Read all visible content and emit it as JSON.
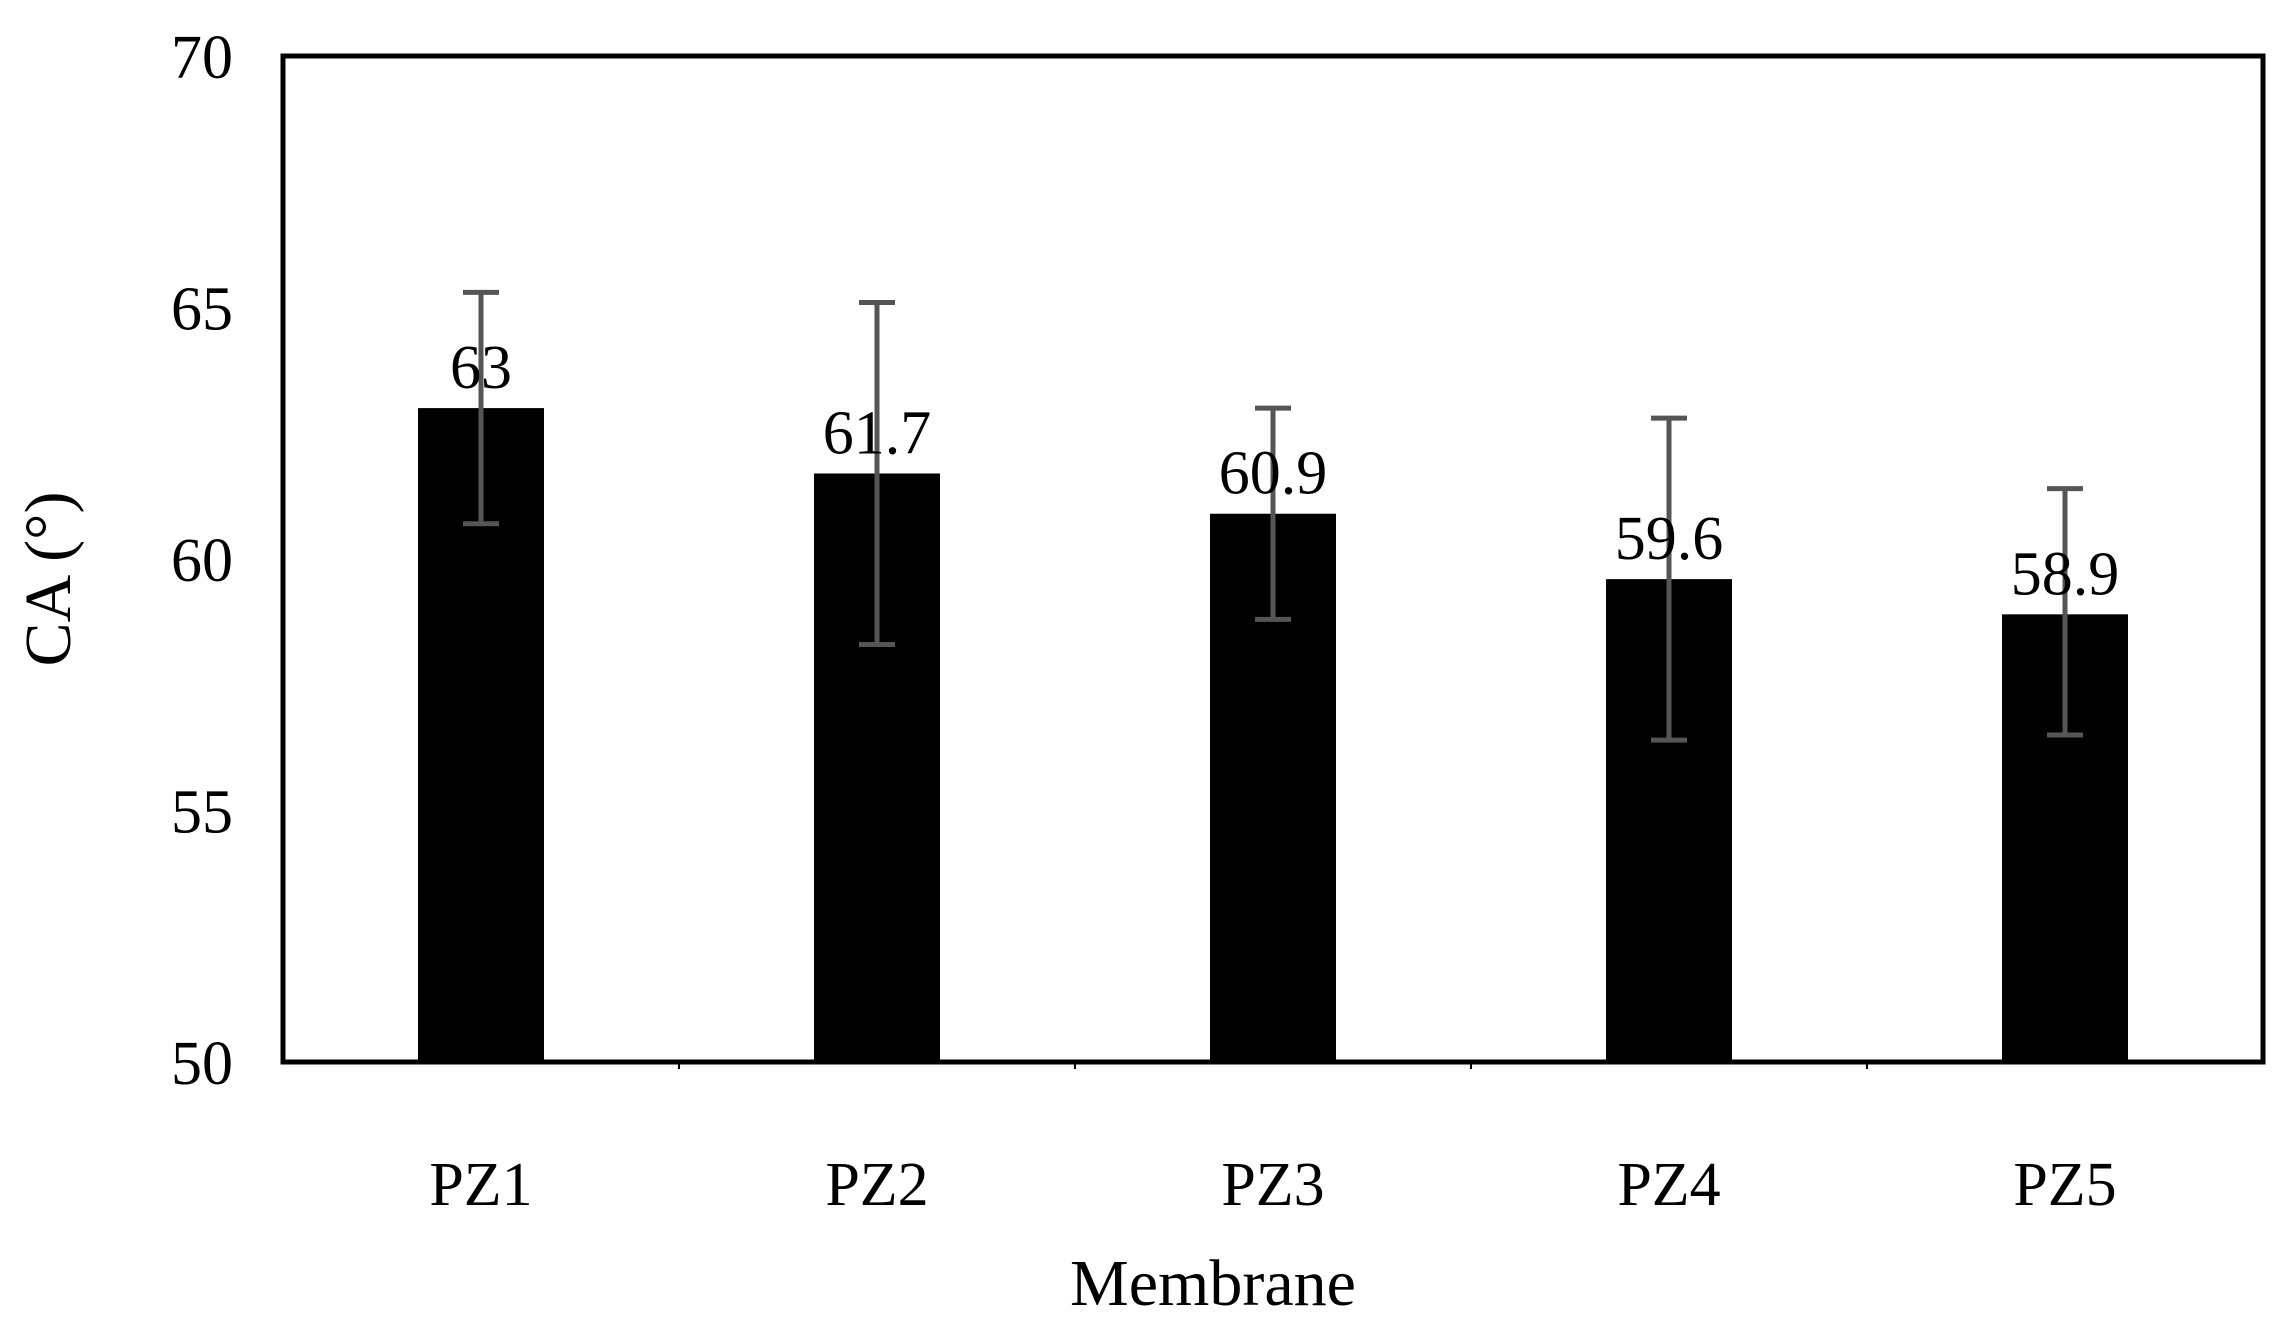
{
  "chart_data": {
    "type": "bar",
    "title": "",
    "xlabel": "Membrane",
    "ylabel": "CA (°)",
    "categories": [
      "PZ1",
      "PZ2",
      "PZ3",
      "PZ4",
      "PZ5"
    ],
    "values": [
      63,
      61.7,
      60.9,
      59.6,
      58.9
    ],
    "data_labels": [
      "63",
      "61.7",
      "60.9",
      "59.6",
      "58.9"
    ],
    "error_bars": [
      {
        "low": 60.7,
        "high": 65.3
      },
      {
        "low": 58.3,
        "high": 65.1
      },
      {
        "low": 58.8,
        "high": 63.0
      },
      {
        "low": 56.4,
        "high": 62.8
      },
      {
        "low": 56.5,
        "high": 61.4
      }
    ],
    "ylim": [
      50,
      70
    ],
    "yticks": [
      50,
      55,
      60,
      65,
      70
    ],
    "ytick_labels": [
      "50",
      "55",
      "60",
      "65",
      "70"
    ],
    "grid": false,
    "legend": "none",
    "colors": {
      "bar": "#000000",
      "error_bar": "#555555",
      "frame": "#000000",
      "text": "#000000"
    }
  }
}
